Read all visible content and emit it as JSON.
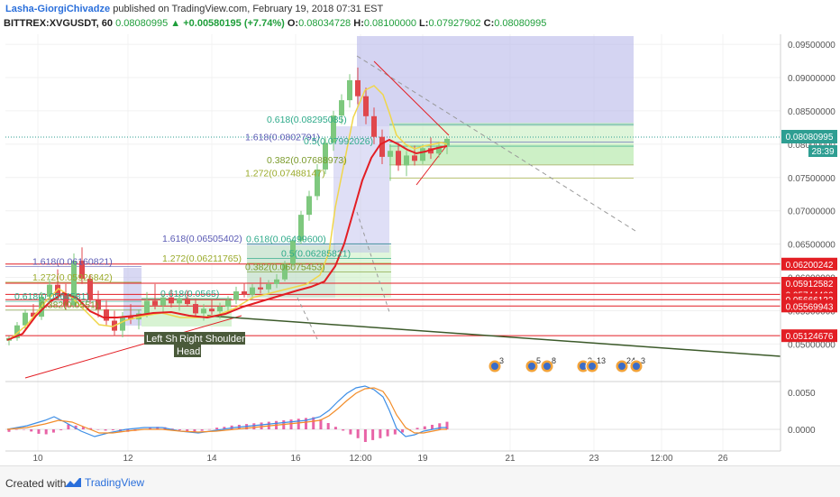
{
  "header": {
    "author": "Lasha-GiorgiChivadze",
    "published": "published on TradingView.com, February 19, 2018 07:31 EST",
    "symbol": "BITTREX:XVGUSDT, 60",
    "last": "0.08080995",
    "change": "▲ +0.00580195 (+7.74%)",
    "o_label": "O:",
    "o_value": "0.08034728",
    "h_label": "H:",
    "h_value": "0.08100000",
    "l_label": "L:",
    "l_value": "0.07927902",
    "c_label": "C:",
    "c_value": "0.08080995"
  },
  "footer": {
    "created_with": "Created with",
    "brand": "TradingView"
  },
  "colors": {
    "up": "#26a69a",
    "down": "#ef5350",
    "candle_up": "#7ec87e",
    "candle_down": "#e0474c",
    "ma_red": "#e31e24",
    "ma_yellow": "#f0d64a",
    "hline": "#e31e24",
    "zone_purple": "#b8b8ea",
    "zone_green": "#c8eec0",
    "macd_blue": "#3d8ee6",
    "macd_orange": "#f28c28",
    "hist_pink": "#e0308a",
    "price_badge": "#2e9e92",
    "neckline": "#3c5a2a"
  },
  "chart_data": {
    "type": "candlestick",
    "ylim": [
      0.0445,
      0.0965
    ],
    "y_ticks": [
      "0.09500000",
      "0.09000000",
      "0.08500000",
      "0.08000000",
      "0.07500000",
      "0.07000000",
      "0.06500000",
      "0.06000000",
      "0.05500000",
      "0.05000000"
    ],
    "x_ticks": [
      "10",
      "12",
      "14",
      "16",
      "12:00",
      "19",
      "21",
      "23",
      "12:00",
      "26"
    ],
    "current_price": "0.08080995",
    "countdown": "28:39",
    "price_levels": [
      {
        "value": 0.06200242,
        "label": "0.06200242"
      },
      {
        "value": 0.05912582,
        "label": "0.05912582"
      },
      {
        "value": 0.05744466,
        "label": "0.05744466"
      },
      {
        "value": 0.05666122,
        "label": "0.05666122"
      },
      {
        "value": 0.05569943,
        "label": "0.05569943"
      },
      {
        "value": 0.05124676,
        "label": "0.05124676"
      }
    ],
    "fib_labels": [
      {
        "text": "0.618(0.08295085)",
        "value": 0.08295085,
        "color": "#2eaa8a"
      },
      {
        "text": "1.618(0.0802791)",
        "value": 0.0803,
        "color": "#5a5ab4"
      },
      {
        "text": "0.5(0.07992026)",
        "value": 0.0797,
        "color": "#2eaa8a"
      },
      {
        "text": "0.382(0.07688973)",
        "value": 0.07688973,
        "color": "#7a9a2a"
      },
      {
        "text": "1.272(0.07488147)",
        "value": 0.07488147,
        "color": "#9aaa2a"
      },
      {
        "text": "1.618(0.06505402)",
        "value": 0.06505402,
        "color": "#5a5ab4"
      },
      {
        "text": "0.618(0.06499600)",
        "value": 0.065,
        "color": "#2eaa8a"
      },
      {
        "text": "0.5(0.06285821)",
        "value": 0.06285821,
        "color": "#2eaa8a"
      },
      {
        "text": "1.272(0.06211765)",
        "value": 0.06211765,
        "color": "#9aaa2a"
      },
      {
        "text": "0.382(0.06075453)",
        "value": 0.0608,
        "color": "#7a9a2a"
      },
      {
        "text": "1.618(0.06160821)",
        "value": 0.06160821,
        "color": "#5a5ab4"
      },
      {
        "text": "1.272(0.05926842)",
        "value": 0.05926842,
        "color": "#9aaa2a"
      },
      {
        "text": "0.618(0.0565)",
        "value": 0.0568,
        "color": "#2eaa8a"
      },
      {
        "text": "0.618(0.0564581)",
        "value": 0.0564,
        "color": "#2eaa8a"
      },
      {
        "text": "0.382(0.0551)",
        "value": 0.0551,
        "color": "#7a9a2a"
      }
    ],
    "pattern_labels": [
      "Left Sh",
      "Right Shoulder",
      "Head"
    ],
    "event_badges": [
      "3",
      "5",
      "8",
      "3",
      "13",
      "24",
      "3"
    ],
    "macd_ticks": [
      "0.0050",
      "0.0000"
    ],
    "candles": [
      [
        0.0505,
        0.0512,
        0.0498,
        0.0509
      ],
      [
        0.0509,
        0.0533,
        0.0505,
        0.0528
      ],
      [
        0.0528,
        0.0552,
        0.0522,
        0.0547
      ],
      [
        0.0547,
        0.056,
        0.0538,
        0.0541
      ],
      [
        0.0541,
        0.0578,
        0.0536,
        0.0571
      ],
      [
        0.0571,
        0.0598,
        0.056,
        0.0589
      ],
      [
        0.0589,
        0.0612,
        0.0566,
        0.0574
      ],
      [
        0.0574,
        0.059,
        0.0552,
        0.0558
      ],
      [
        0.0558,
        0.0636,
        0.0555,
        0.0625
      ],
      [
        0.0625,
        0.0645,
        0.059,
        0.0598
      ],
      [
        0.0598,
        0.0605,
        0.056,
        0.0566
      ],
      [
        0.0566,
        0.058,
        0.054,
        0.0552
      ],
      [
        0.0552,
        0.0565,
        0.0528,
        0.0535
      ],
      [
        0.0535,
        0.055,
        0.0512,
        0.052
      ],
      [
        0.052,
        0.0548,
        0.051,
        0.0541
      ],
      [
        0.0541,
        0.056,
        0.053,
        0.0537
      ],
      [
        0.0537,
        0.0552,
        0.0522,
        0.0546
      ],
      [
        0.0546,
        0.0578,
        0.054,
        0.0565
      ],
      [
        0.0565,
        0.059,
        0.0552,
        0.0558
      ],
      [
        0.0558,
        0.0575,
        0.0545,
        0.057
      ],
      [
        0.057,
        0.0582,
        0.0555,
        0.0561
      ],
      [
        0.0561,
        0.0575,
        0.055,
        0.0568
      ],
      [
        0.0568,
        0.058,
        0.0556,
        0.056
      ],
      [
        0.056,
        0.0568,
        0.054,
        0.0546
      ],
      [
        0.0546,
        0.056,
        0.0535,
        0.0553
      ],
      [
        0.0553,
        0.0566,
        0.0544,
        0.0549
      ],
      [
        0.0549,
        0.0562,
        0.0538,
        0.0556
      ],
      [
        0.0556,
        0.0572,
        0.0548,
        0.0566
      ],
      [
        0.0566,
        0.0586,
        0.056,
        0.0579
      ],
      [
        0.0579,
        0.0592,
        0.057,
        0.0574
      ],
      [
        0.0574,
        0.059,
        0.0566,
        0.0585
      ],
      [
        0.0585,
        0.06,
        0.0576,
        0.0582
      ],
      [
        0.0582,
        0.0596,
        0.0574,
        0.059
      ],
      [
        0.059,
        0.0605,
        0.0584,
        0.0597
      ],
      [
        0.0597,
        0.0625,
        0.0594,
        0.062
      ],
      [
        0.062,
        0.066,
        0.0616,
        0.0655
      ],
      [
        0.0655,
        0.07,
        0.065,
        0.0694
      ],
      [
        0.0694,
        0.073,
        0.0685,
        0.0722
      ],
      [
        0.0722,
        0.077,
        0.0716,
        0.0762
      ],
      [
        0.0762,
        0.081,
        0.0755,
        0.0802
      ],
      [
        0.0802,
        0.085,
        0.079,
        0.0843
      ],
      [
        0.0843,
        0.0875,
        0.083,
        0.0866
      ],
      [
        0.0866,
        0.0905,
        0.0855,
        0.0896
      ],
      [
        0.0896,
        0.0915,
        0.086,
        0.0872
      ],
      [
        0.0872,
        0.0885,
        0.083,
        0.0842
      ],
      [
        0.0842,
        0.0855,
        0.08,
        0.0811
      ],
      [
        0.0811,
        0.0822,
        0.077,
        0.0781
      ],
      [
        0.0781,
        0.08,
        0.0745,
        0.079
      ],
      [
        0.079,
        0.0802,
        0.076,
        0.0768
      ],
      [
        0.0768,
        0.079,
        0.0752,
        0.0783
      ],
      [
        0.0783,
        0.0798,
        0.0768,
        0.0775
      ],
      [
        0.0775,
        0.08,
        0.077,
        0.0794
      ],
      [
        0.0794,
        0.081,
        0.0778,
        0.0786
      ],
      [
        0.0786,
        0.0804,
        0.078,
        0.0798
      ],
      [
        0.0798,
        0.081,
        0.0785,
        0.0808
      ]
    ]
  }
}
